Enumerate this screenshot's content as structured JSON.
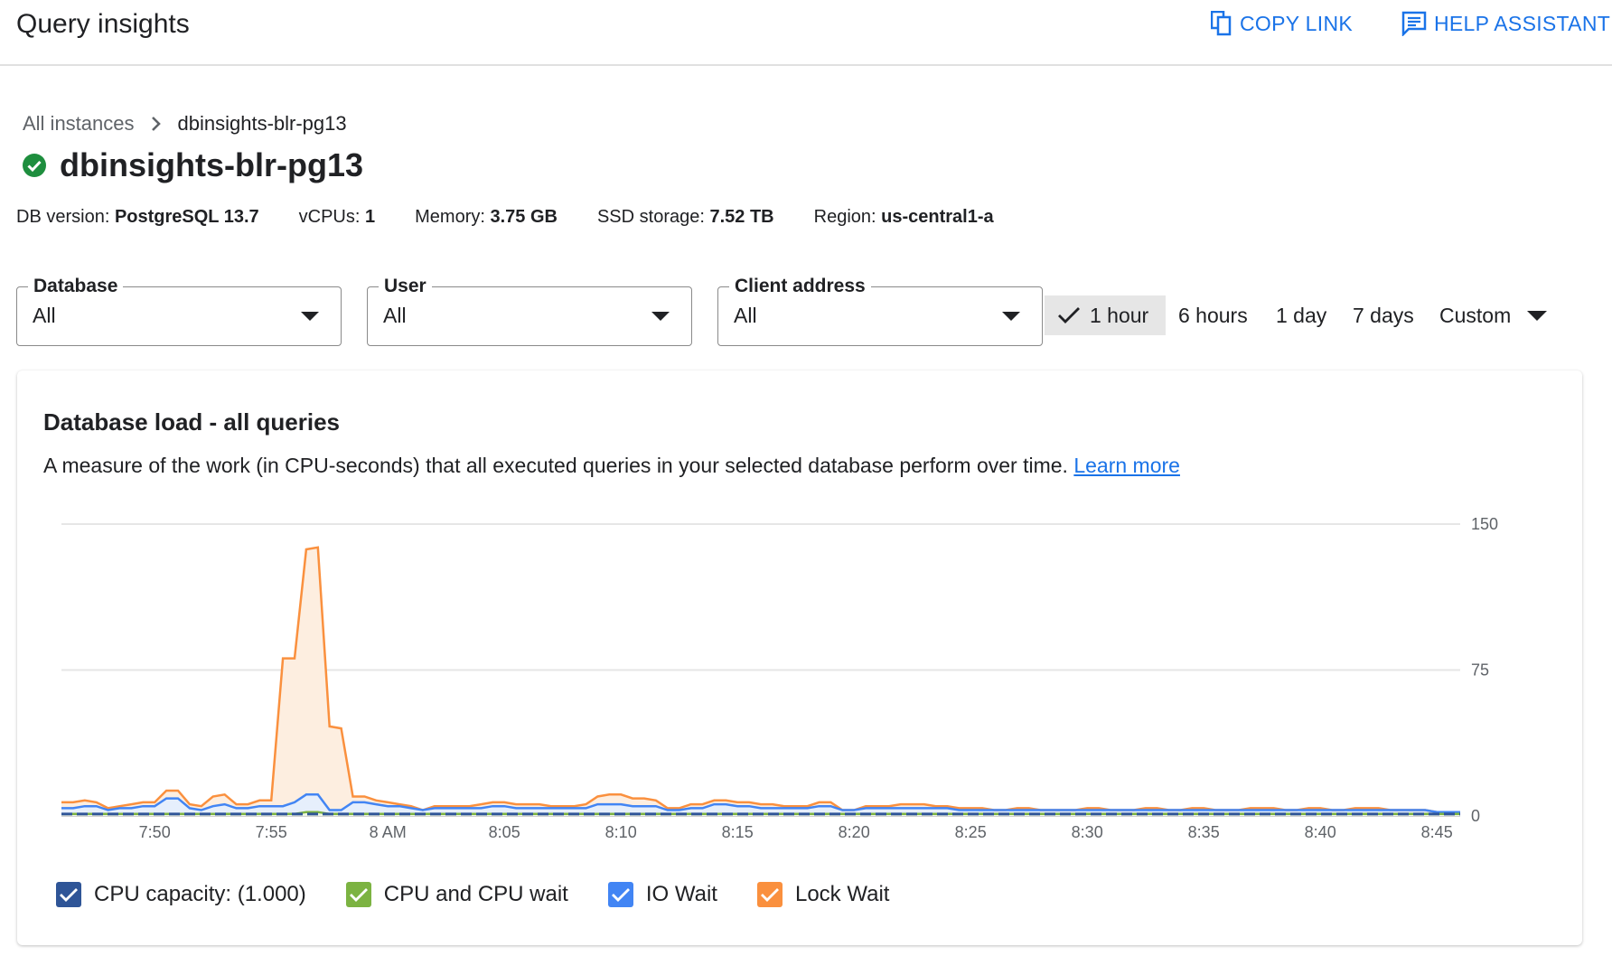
{
  "header": {
    "title": "Query insights",
    "copy_link": "COPY LINK",
    "help_assistant": "HELP ASSISTANT"
  },
  "breadcrumb": {
    "root": "All instances",
    "current": "dbinsights-blr-pg13"
  },
  "instance": {
    "name": "dbinsights-blr-pg13",
    "status": "healthy",
    "status_color": "#1e8e3e",
    "info": [
      {
        "label": "DB version:",
        "value": "PostgreSQL 13.7"
      },
      {
        "label": "vCPUs:",
        "value": "1"
      },
      {
        "label": "Memory:",
        "value": "3.75 GB"
      },
      {
        "label": "SSD storage:",
        "value": "7.52 TB"
      },
      {
        "label": "Region:",
        "value": "us-central1-a"
      }
    ]
  },
  "filters": [
    {
      "label": "Database",
      "value": "All"
    },
    {
      "label": "User",
      "value": "All"
    },
    {
      "label": "Client address",
      "value": "All"
    }
  ],
  "time_range": {
    "options": [
      "1 hour",
      "6 hours",
      "1 day",
      "7 days",
      "Custom"
    ],
    "selected": "1 hour"
  },
  "card": {
    "title": "Database load - all queries",
    "description": "A measure of the work (in CPU-seconds) that all executed queries in your selected database perform over time.",
    "learn_more": "Learn more"
  },
  "chart_data": {
    "type": "area",
    "stacked": true,
    "x_range": [
      "7:46",
      "8:46"
    ],
    "x_step_minutes": 0.5,
    "ylim": [
      0,
      150
    ],
    "y_ticks": [
      "0",
      "75",
      "150"
    ],
    "x_ticks": [
      {
        "time": "7:50",
        "label": "7:50"
      },
      {
        "time": "7:55",
        "label": "7:55"
      },
      {
        "time": "8:00",
        "label": "8 AM"
      },
      {
        "time": "8:05",
        "label": "8:05"
      },
      {
        "time": "8:10",
        "label": "8:10"
      },
      {
        "time": "8:15",
        "label": "8:15"
      },
      {
        "time": "8:20",
        "label": "8:20"
      },
      {
        "time": "8:25",
        "label": "8:25"
      },
      {
        "time": "8:30",
        "label": "8:30"
      },
      {
        "time": "8:35",
        "label": "8:35"
      },
      {
        "time": "8:40",
        "label": "8:40"
      },
      {
        "time": "8:45",
        "label": "8:45"
      }
    ],
    "grid": true,
    "legend_placement": "bottom-left",
    "cpu_capacity": 1.0,
    "series": [
      {
        "name": "CPU and CPU wait",
        "color": "#7cb342",
        "values": [
          1,
          1,
          1,
          1,
          1,
          1,
          1,
          1,
          1,
          1,
          1,
          1,
          1,
          1,
          1,
          1,
          1,
          1,
          1,
          1,
          1,
          2,
          2,
          1,
          1,
          1,
          1,
          1,
          1,
          1,
          1,
          1,
          1,
          1,
          1,
          1,
          1,
          1,
          1,
          1,
          1,
          1,
          1,
          1,
          1,
          1,
          1,
          1,
          1,
          1,
          1,
          1,
          1,
          1,
          1,
          1,
          1,
          1,
          1,
          1,
          1,
          1,
          1,
          1,
          1,
          1,
          1,
          1,
          1,
          1,
          1,
          1,
          1,
          1,
          1,
          1,
          1,
          1,
          1,
          1,
          1,
          1,
          1,
          1,
          1,
          1,
          1,
          1,
          1,
          1,
          1,
          1,
          1,
          1,
          1,
          1,
          1,
          1,
          1,
          1,
          1,
          1,
          1,
          1,
          1,
          1,
          1,
          1,
          1,
          1,
          1,
          1,
          1,
          1,
          1,
          1,
          1,
          1,
          1,
          1,
          1
        ]
      },
      {
        "name": "IO Wait",
        "color": "#4285f4",
        "values": [
          3,
          3,
          4,
          4,
          2,
          3,
          3,
          4,
          4,
          8,
          8,
          3,
          2,
          4,
          5,
          3,
          3,
          4,
          4,
          4,
          6,
          9,
          9,
          2,
          2,
          6,
          6,
          5,
          4,
          4,
          3,
          2,
          3,
          3,
          3,
          3,
          3,
          4,
          4,
          3,
          3,
          3,
          3,
          3,
          3,
          3,
          5,
          5,
          5,
          4,
          4,
          4,
          2,
          2,
          3,
          3,
          5,
          5,
          4,
          4,
          3,
          3,
          3,
          3,
          3,
          4,
          4,
          2,
          2,
          3,
          3,
          3,
          3,
          3,
          3,
          3,
          3,
          2,
          2,
          2,
          2,
          2,
          2,
          2,
          2,
          2,
          2,
          2,
          2,
          2,
          2,
          2,
          2,
          2,
          2,
          2,
          2,
          2,
          2,
          2,
          2,
          2,
          2,
          2,
          2,
          2,
          2,
          2,
          2,
          2,
          2,
          2,
          2,
          2,
          2,
          2,
          2,
          2,
          1,
          1,
          1
        ]
      },
      {
        "name": "Lock Wait",
        "color": "#fa903e",
        "values_are_cumulative_total": true,
        "values": [
          7,
          7,
          8,
          7,
          4,
          5,
          6,
          7,
          7,
          13,
          13,
          6,
          5,
          10,
          11,
          6,
          6,
          8,
          8,
          81,
          81,
          137,
          138,
          46,
          45,
          10,
          10,
          8,
          7,
          6,
          5,
          3,
          5,
          5,
          5,
          5,
          6,
          7,
          7,
          6,
          6,
          6,
          5,
          5,
          5,
          6,
          10,
          11,
          11,
          9,
          9,
          8,
          4,
          4,
          6,
          6,
          8,
          8,
          7,
          7,
          6,
          6,
          5,
          5,
          5,
          7,
          7,
          3,
          3,
          5,
          5,
          5,
          6,
          6,
          6,
          5,
          5,
          4,
          4,
          4,
          3,
          3,
          4,
          4,
          3,
          3,
          3,
          3,
          4,
          4,
          3,
          3,
          3,
          4,
          4,
          3,
          3,
          4,
          4,
          3,
          3,
          3,
          4,
          4,
          4,
          3,
          3,
          4,
          4,
          3,
          3,
          4,
          4,
          4,
          3,
          3,
          3,
          3,
          2,
          2,
          2
        ]
      }
    ]
  },
  "legend": [
    {
      "label": "CPU capacity: (1.000)",
      "color": "#2f5597",
      "checked": true
    },
    {
      "label": "CPU and CPU wait",
      "color": "#7cb342",
      "checked": true
    },
    {
      "label": "IO Wait",
      "color": "#4285f4",
      "checked": true
    },
    {
      "label": "Lock Wait",
      "color": "#fa903e",
      "checked": true
    }
  ]
}
